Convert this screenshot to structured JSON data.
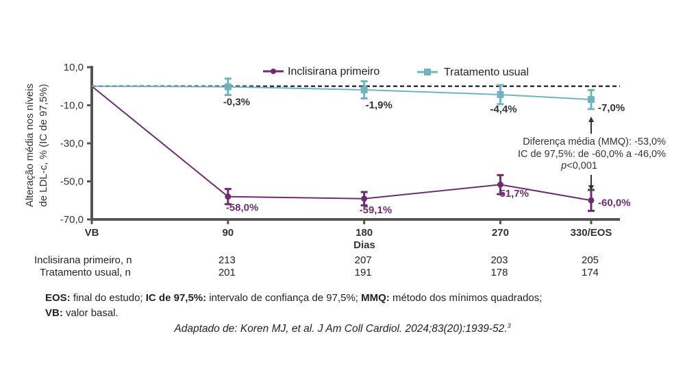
{
  "chart_data": {
    "type": "line",
    "xlabel": "Dias",
    "ylabel": "Alteração média nos níveis de LDL-c, % (IC de 97,5%)",
    "x": [
      0,
      90,
      180,
      270,
      330
    ],
    "x_tick_labels": [
      "VB",
      "90",
      "180",
      "270",
      "330/EOS"
    ],
    "ylim": [
      -70,
      10
    ],
    "y_ticks": [
      10,
      -10,
      -30,
      -50,
      -70
    ],
    "y_tick_labels": [
      "10,0",
      "-10,0",
      "-30,0",
      "-50,0",
      "-70,0"
    ],
    "reference_line": 0,
    "legend_position": "top",
    "grid": false,
    "series": [
      {
        "name": "Inclisirana primeiro",
        "color": "#6b2d6e",
        "marker": "circle",
        "values": [
          0,
          -58.0,
          -59.1,
          -51.7,
          -60.0
        ],
        "ci_half_width": [
          null,
          4,
          3.5,
          5,
          5.5
        ],
        "data_labels": [
          "",
          "-58,0%",
          "-59,1%",
          "-51,7%",
          "-60,0%"
        ]
      },
      {
        "name": "Tratamento usual",
        "color": "#6fb3c0",
        "marker": "square",
        "values": [
          0,
          -0.3,
          -1.9,
          -4.4,
          -7.0
        ],
        "ci_half_width": [
          null,
          4.3,
          4.5,
          5,
          5
        ],
        "data_labels": [
          "",
          "-0,3%",
          "-1,9%",
          "-4,4%",
          "-7,0%"
        ]
      }
    ],
    "annotation": {
      "line1": "Diferença média (MMQ): -53,0%",
      "line2": "IC de 97,5%: de -60,0% a -46,0%",
      "p_italic": "p",
      "p_rest": "<0,001"
    }
  },
  "n_table": {
    "rows": [
      {
        "label": "Inclisirana primeiro, n",
        "values": [
          "213",
          "207",
          "203",
          "205"
        ]
      },
      {
        "label": "Tratamento usual, n",
        "values": [
          "201",
          "191",
          "178",
          "174"
        ]
      }
    ]
  },
  "footnote": {
    "eos_term": "EOS:",
    "eos_def": " final do estudo; ",
    "ic_term": "IC de 97,5%:",
    "ic_def": " intervalo de confiança de 97,5%; ",
    "mmq_term": "MMQ:",
    "mmq_def": " método dos mínimos quadrados;",
    "vb_term": "VB:",
    "vb_def": " valor basal."
  },
  "citation": "Adaptado de: Koren MJ, et al. J Am Coll Cardiol. 2024;83(20):1939-52.",
  "citation_sup": "3"
}
